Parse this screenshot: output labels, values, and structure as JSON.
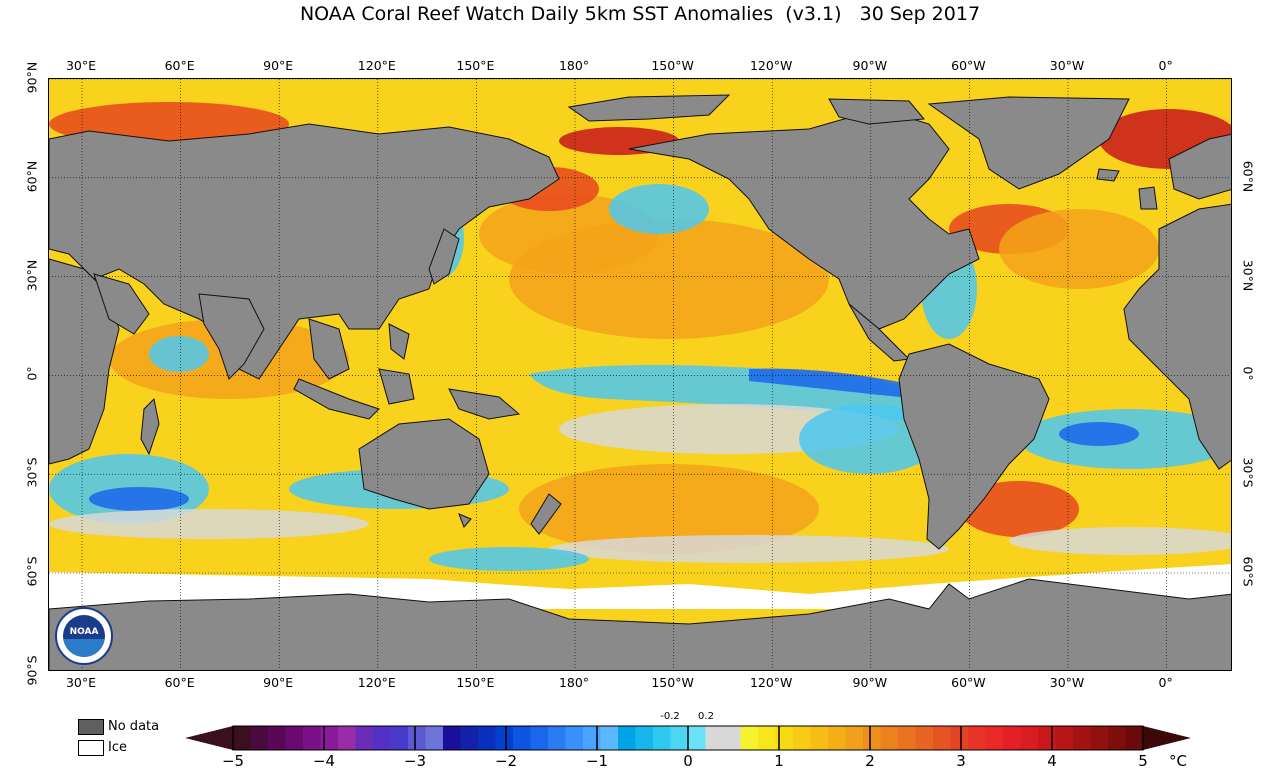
{
  "title": "NOAA Coral Reef Watch Daily 5km SST Anomalies  (v3.1)   30 Sep 2017",
  "lon_ticks": [
    "30°E",
    "60°E",
    "90°E",
    "120°E",
    "150°E",
    "180°",
    "150°W",
    "120°W",
    "90°W",
    "60°W",
    "30°W",
    "0°"
  ],
  "lat_ticks_left": [
    "90°N",
    "60°N",
    "30°N",
    "0°",
    "30°S",
    "60°S",
    "90°S"
  ],
  "lat_ticks_right": [
    "60°N",
    "30°N",
    "0°",
    "30°S",
    "60°S"
  ],
  "logo_text": "NOAA",
  "legend": {
    "no_data": "No data",
    "ice": "Ice",
    "no_data_color": "#5f5f5f",
    "ice_color": "#ffffff"
  },
  "colorbar": {
    "labels": [
      "−5",
      "−4",
      "−3",
      "−2",
      "−1",
      "0",
      "1",
      "2",
      "3",
      "4",
      "5"
    ],
    "small_labels": [
      "-0.2",
      "0.2"
    ],
    "unit": "°C",
    "colors": [
      "#3b0f1f",
      "#4a0a3d",
      "#5b0757",
      "#6a0a70",
      "#7a1088",
      "#8a1a9a",
      "#9a2ca8",
      "#6a2db8",
      "#5530c4",
      "#4a3acc",
      "#5b5ad2",
      "#6d74da",
      "#1a0f9a",
      "#1220aa",
      "#0a2fbd",
      "#0041d0",
      "#0b55e0",
      "#1a66ec",
      "#2a7cf4",
      "#3a90fa",
      "#4aa4ff",
      "#5ab8ff",
      "#00a4e6",
      "#17b7ec",
      "#2fc8f1",
      "#4cd6f4",
      "#6be3f7",
      "#d8d8d8",
      "#d8d8d8",
      "#f7f22e",
      "#f7e61a",
      "#f8da12",
      "#f8cc14",
      "#f6bd16",
      "#f3ae18",
      "#f0a01a",
      "#ee911c",
      "#ec821e",
      "#ea7320",
      "#e86422",
      "#e65423",
      "#e44425",
      "#e83426",
      "#ea2926",
      "#e51f25",
      "#d81c21",
      "#c8181c",
      "#b81518",
      "#a51214",
      "#921010",
      "#7e0d0d",
      "#6a0a0a"
    ],
    "left_arrow_color": "#3b0f1f",
    "right_arrow_color": "#3d0808"
  },
  "map_colors": {
    "land": "#8a8a8a",
    "ice": "#ffffff",
    "warm": "#f8d21c",
    "warmer": "#f3a31a",
    "hot": "#e8481e",
    "very_hot": "#c8181c",
    "neutral": "#d8d8d8",
    "cool": "#4cc8f1",
    "cold": "#1a66ec",
    "very_cold": "#1220aa"
  }
}
